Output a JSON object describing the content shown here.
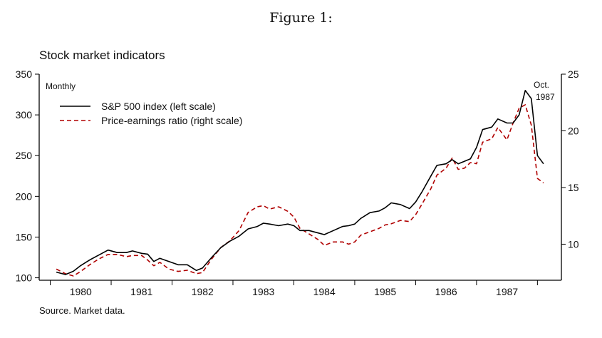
{
  "figure_title": "Figure 1:",
  "source": "Source. Market data.",
  "chart_data": {
    "type": "line",
    "title": "Stock market indicators",
    "subtitle": "Monthly",
    "annotation": {
      "line1": "Oct.",
      "line2": "1987"
    },
    "x": [
      1979.6,
      1979.75,
      1979.88,
      1980.0,
      1980.15,
      1980.3,
      1980.45,
      1980.6,
      1980.75,
      1980.85,
      1981.0,
      1981.1,
      1981.2,
      1981.3,
      1981.45,
      1981.6,
      1981.75,
      1981.9,
      1982.0,
      1982.15,
      1982.3,
      1982.45,
      1982.6,
      1982.75,
      1982.9,
      1983.0,
      1983.1,
      1983.25,
      1983.4,
      1983.5,
      1983.6,
      1983.75,
      1983.9,
      1984.0,
      1984.15,
      1984.3,
      1984.4,
      1984.5,
      1984.6,
      1984.75,
      1984.9,
      1985.0,
      1985.1,
      1985.25,
      1985.4,
      1985.5,
      1985.6,
      1985.75,
      1985.85,
      1986.0,
      1986.1,
      1986.2,
      1986.3,
      1986.4,
      1986.5,
      1986.6,
      1986.75,
      1986.85,
      1987.0,
      1987.1,
      1987.2,
      1987.3,
      1987.4,
      1987.5,
      1987.6
    ],
    "series": [
      {
        "name": "S&P 500 index (left scale)",
        "axis": "left",
        "color": "#000000",
        "style": "solid",
        "values": [
          107,
          104,
          108,
          115,
          122,
          128,
          134,
          131,
          131,
          133,
          130,
          129,
          120,
          124,
          120,
          116,
          116,
          109,
          112,
          125,
          137,
          145,
          151,
          160,
          163,
          167,
          166,
          164,
          166,
          164,
          158,
          158,
          155,
          153,
          158,
          163,
          164,
          166,
          173,
          180,
          182,
          186,
          192,
          190,
          185,
          193,
          205,
          225,
          238,
          240,
          245,
          240,
          243,
          246,
          260,
          282,
          285,
          295,
          290,
          290,
          300,
          330,
          320,
          250,
          240
        ]
      },
      {
        "name": "Price-earnings ratio (right scale)",
        "axis": "right",
        "color": "#b00000",
        "style": "dashed",
        "values": [
          7.8,
          7.4,
          7.2,
          7.6,
          8.2,
          8.7,
          9.1,
          9.1,
          8.9,
          9.0,
          9.0,
          8.6,
          8.1,
          8.4,
          7.8,
          7.6,
          7.7,
          7.4,
          7.5,
          8.7,
          9.7,
          10.3,
          11.2,
          12.8,
          13.3,
          13.4,
          13.1,
          13.3,
          12.9,
          12.4,
          11.4,
          10.9,
          10.4,
          9.9,
          10.2,
          10.2,
          10.0,
          10.2,
          10.8,
          11.1,
          11.4,
          11.7,
          11.8,
          12.1,
          12.0,
          12.6,
          13.5,
          14.9,
          16.1,
          16.7,
          17.6,
          16.6,
          16.7,
          17.2,
          17.1,
          19.0,
          19.3,
          20.3,
          19.2,
          20.7,
          22.0,
          22.3,
          20.5,
          15.8,
          15.4
        ]
      }
    ],
    "x_ticks": [
      "1980",
      "1981",
      "1982",
      "1983",
      "1984",
      "1985",
      "1986",
      "1987"
    ],
    "x_tick_values": [
      1980,
      1981,
      1982,
      1983,
      1984,
      1985,
      1986,
      1987
    ],
    "xlim": [
      1979.4,
      1987.8
    ],
    "ylim_left": [
      97,
      350
    ],
    "yticks_left": [
      100,
      150,
      200,
      250,
      300,
      350
    ],
    "ylim_right": [
      6.82,
      25
    ],
    "yticks_right": [
      10,
      15,
      20,
      25
    ],
    "legend_position": "top-left",
    "grid": false
  }
}
